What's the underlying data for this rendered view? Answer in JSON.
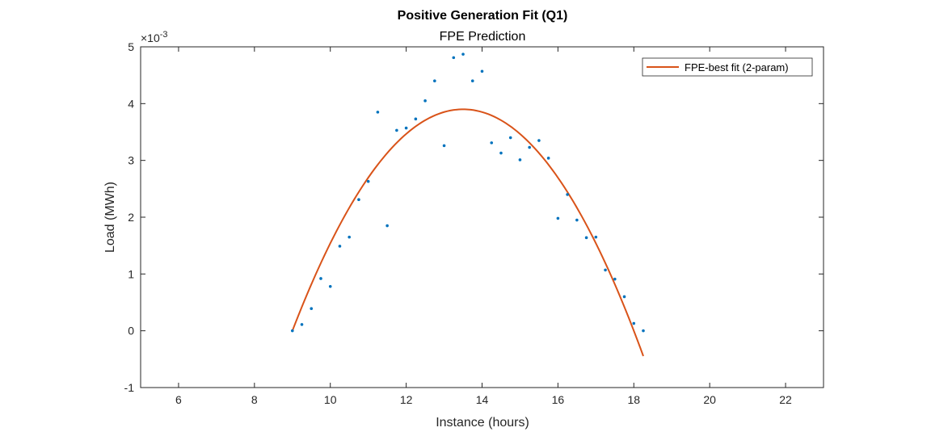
{
  "chart_data": {
    "type": "scatter",
    "title": "Positive Generation Fit (Q1)",
    "subtitle": "FPE Prediction",
    "xlabel": "Instance (hours)",
    "ylabel": "Load (MWh)",
    "y_multiplier_label": "×10",
    "y_multiplier_exponent": "-3",
    "xlim": [
      5,
      23
    ],
    "ylim": [
      -1,
      5
    ],
    "xticks": [
      6,
      8,
      10,
      12,
      14,
      16,
      18,
      20,
      22
    ],
    "yticks": [
      -1,
      0,
      1,
      2,
      3,
      4,
      5
    ],
    "grid": false,
    "legend_position": "top-right",
    "series": [
      {
        "kind": "scatter",
        "color": "#0072BD",
        "x": [
          9.0,
          9.25,
          9.5,
          9.75,
          10.0,
          10.25,
          10.5,
          10.75,
          11.0,
          11.25,
          11.5,
          11.75,
          12.0,
          12.25,
          12.5,
          12.75,
          13.0,
          13.25,
          13.5,
          13.75,
          14.0,
          14.25,
          14.5,
          14.75,
          15.0,
          15.25,
          15.5,
          15.75,
          16.0,
          16.25,
          16.5,
          16.75,
          17.0,
          17.25,
          17.5,
          17.75,
          18.0,
          18.25
        ],
        "y": [
          0.0,
          0.11,
          0.39,
          0.92,
          0.78,
          1.49,
          1.65,
          2.31,
          2.63,
          3.85,
          1.85,
          3.53,
          3.57,
          3.73,
          4.05,
          4.4,
          3.26,
          4.81,
          4.87,
          4.4,
          4.57,
          3.31,
          3.13,
          3.4,
          3.01,
          3.23,
          3.35,
          3.04,
          1.98,
          2.4,
          1.95,
          1.64,
          1.65,
          1.07,
          0.91,
          0.6,
          0.13,
          0.0
        ]
      },
      {
        "kind": "line",
        "name": "FPE-best fit (2-param)",
        "color": "#D95319",
        "model": "quadratic_vertex",
        "vertex_x": 13.5,
        "vertex_y": 3.9,
        "curvature": -0.1926,
        "x_range": [
          9.0,
          18.25
        ]
      }
    ]
  }
}
